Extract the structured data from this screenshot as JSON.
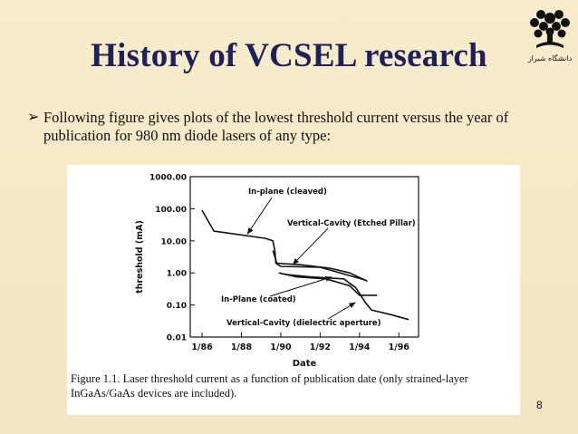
{
  "slide": {
    "title": "History of VCSEL research",
    "bullet_icon": "arrow-bullet-icon",
    "bullet_text": "Following figure gives plots of the lowest threshold current versus the year of publication for 980 nm diode lasers of any type:",
    "page_number": "8",
    "logo": {
      "icon": "university-emblem-icon",
      "caption": "دانشگاه شیراز"
    },
    "colors": {
      "background": "#f5e9c4",
      "title": "#1f1f5a",
      "ink": "#111111"
    }
  },
  "figure": {
    "caption_label": "Figure 1.1.",
    "caption_text": "Laser threshold current as a function of publication date (only strained-layer InGaAs/GaAs devices are included)."
  },
  "chart_data": {
    "type": "line",
    "title": "",
    "xlabel": "Date",
    "ylabel": "threshold (mA)",
    "yscale": "log",
    "xlim": [
      1985.4,
      1997.0
    ],
    "ylim": [
      0.01,
      1000
    ],
    "xticks": [
      1986,
      1988,
      1990,
      1992,
      1994,
      1996
    ],
    "xtick_labels": [
      "1/86",
      "1/88",
      "1/90",
      "1/92",
      "1/94",
      "1/96"
    ],
    "yticks": [
      0.01,
      0.1,
      1,
      10,
      100,
      1000
    ],
    "ytick_labels": [
      "0.01",
      "0.10",
      "1.00",
      "10.00",
      "100.00",
      "1000.00"
    ],
    "series": [
      {
        "name": "In-plane (cleaved)",
        "points": [
          [
            1986.0,
            90
          ],
          [
            1986.6,
            20
          ],
          [
            1989.2,
            12
          ],
          [
            1989.6,
            10
          ],
          [
            1989.7,
            5
          ],
          [
            1989.75,
            2
          ],
          [
            1990.0,
            1.6
          ],
          [
            1992.0,
            1.5
          ],
          [
            1994.3,
            0.6
          ]
        ]
      },
      {
        "name": "Vertical-Cavity (Etched Pillar)",
        "points": [
          [
            1989.6,
            5
          ],
          [
            1989.8,
            2
          ],
          [
            1991.0,
            1.8
          ],
          [
            1992.5,
            1.4
          ],
          [
            1993.5,
            1.0
          ],
          [
            1994.4,
            0.55
          ]
        ]
      },
      {
        "name": "In-Plane (coated)",
        "points": [
          [
            1989.9,
            1.0
          ],
          [
            1990.8,
            0.75
          ],
          [
            1992.3,
            0.65
          ],
          [
            1993.5,
            0.4
          ],
          [
            1994.0,
            0.2
          ],
          [
            1994.5,
            0.2
          ],
          [
            1994.9,
            0.2
          ]
        ]
      },
      {
        "name": "Vertical-Cavity (dielectric aperture)",
        "points": [
          [
            1990.2,
            0.9
          ],
          [
            1991.5,
            0.75
          ],
          [
            1993.2,
            0.65
          ],
          [
            1993.8,
            0.35
          ],
          [
            1994.3,
            0.12
          ],
          [
            1994.6,
            0.07
          ],
          [
            1995.6,
            0.05
          ],
          [
            1996.5,
            0.035
          ]
        ]
      }
    ],
    "annotations": [
      {
        "text": "In-plane (cleaved)",
        "target": [
          1988.3,
          16
        ]
      },
      {
        "text": "Vertical-Cavity (Etched Pillar)",
        "target": [
          1990.6,
          1.8
        ]
      },
      {
        "text": "In-Plane (coated)",
        "target": [
          1992.6,
          0.75
        ]
      },
      {
        "text": "Vertical-Cavity (dielectric aperture)",
        "target": [
          1993.8,
          0.12
        ]
      }
    ]
  }
}
